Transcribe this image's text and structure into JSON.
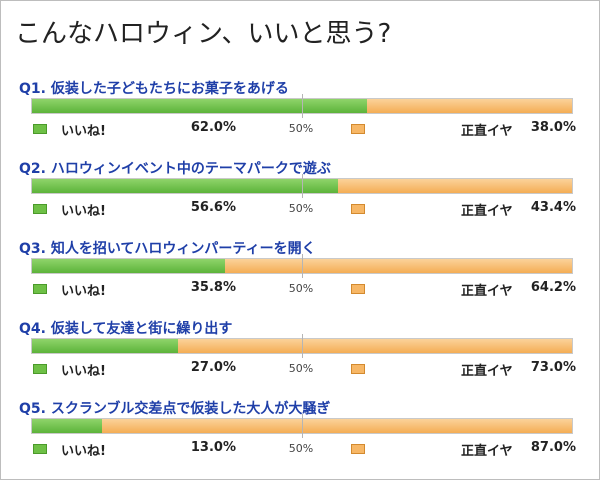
{
  "title": "こんなハロウィン、いいと思う?",
  "legend": {
    "like_label": "いいね!",
    "dislike_label": "正直イヤ",
    "mid_label": "50%"
  },
  "colors": {
    "like": "#6ec046",
    "dislike": "#f7b766",
    "question_text": "#1f3fa8"
  },
  "questions": [
    {
      "label": "Q1. 仮装した子どもたちにお菓子をあげる",
      "like_pct": "62.0%",
      "dislike_pct": "38.0%"
    },
    {
      "label": "Q2. ハロウィンイベント中のテーマパークで遊ぶ",
      "like_pct": "56.6%",
      "dislike_pct": "43.4%"
    },
    {
      "label": "Q3. 知人を招いてハロウィンパーティーを開く",
      "like_pct": "35.8%",
      "dislike_pct": "64.2%"
    },
    {
      "label": "Q4. 仮装して友達と街に繰り出す",
      "like_pct": "27.0%",
      "dislike_pct": "73.0%"
    },
    {
      "label": "Q5. スクランブル交差点で仮装した大人が大騒ぎ",
      "like_pct": "13.0%",
      "dislike_pct": "87.0%"
    }
  ],
  "chart_data": {
    "type": "bar",
    "orientation": "horizontal",
    "stacked": true,
    "title": "こんなハロウィン、いいと思う?",
    "categories": [
      "Q1. 仮装した子どもたちにお菓子をあげる",
      "Q2. ハロウィンイベント中のテーマパークで遊ぶ",
      "Q3. 知人を招いてハロウィンパーティーを開く",
      "Q4. 仮装して友達と街に繰り出す",
      "Q5. スクランブル交差点で仮装した大人が大騒ぎ"
    ],
    "series": [
      {
        "name": "いいね!",
        "values": [
          62.0,
          56.6,
          35.8,
          27.0,
          13.0
        ]
      },
      {
        "name": "正直イヤ",
        "values": [
          38.0,
          43.4,
          64.2,
          73.0,
          87.0
        ]
      }
    ],
    "xlim": [
      0,
      100
    ],
    "reference_line": 50
  }
}
